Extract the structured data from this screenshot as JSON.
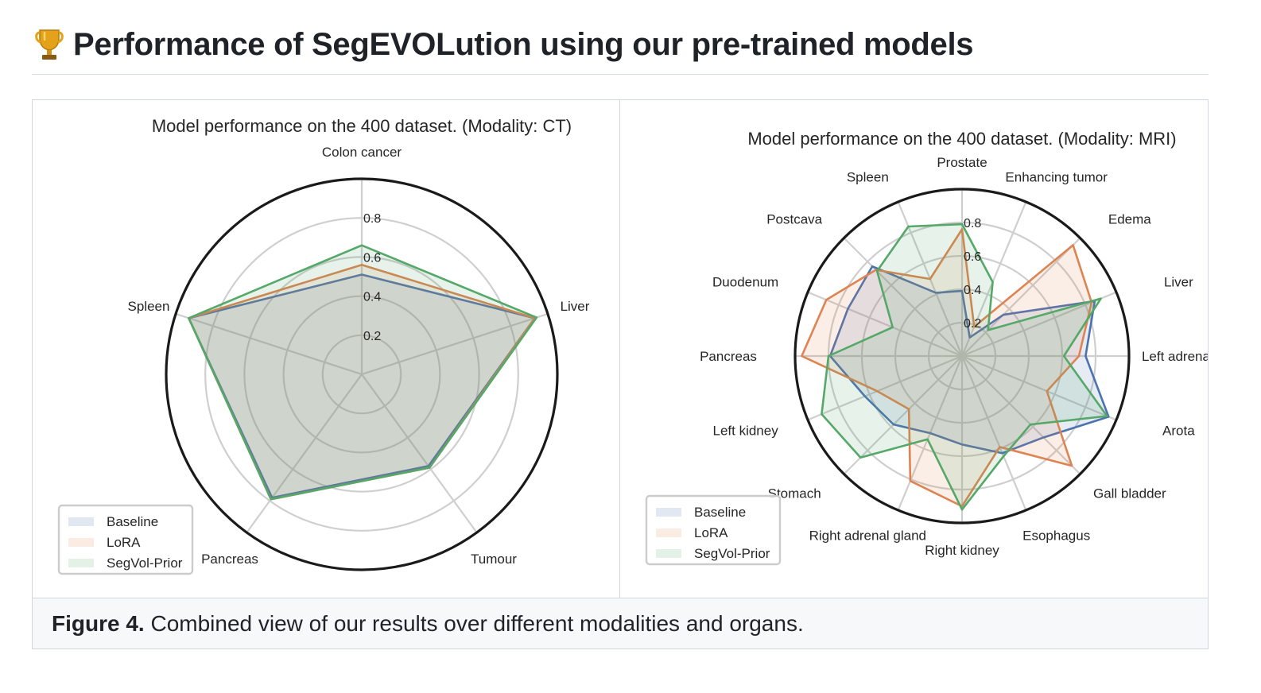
{
  "heading": {
    "icon": "trophy-icon",
    "title": "Performance of SegEVOLution using our pre-trained models"
  },
  "caption": {
    "label": "Figure 4.",
    "text": " Combined view of our results over different modalities and organs."
  },
  "colors": {
    "Baseline": "#4c72b0",
    "LoRA": "#dd8452",
    "SegVol-Prior": "#55a868"
  },
  "chart_data": [
    {
      "type": "radar",
      "title": "Model performance on the 400 dataset. (Modality: CT)",
      "categories": [
        "Colon cancer",
        "Liver",
        "Tumour",
        "Pancreas",
        "Spleen"
      ],
      "ticks": [
        "0.2",
        "0.4",
        "0.6",
        "0.8"
      ],
      "rlim": [
        0,
        1.0
      ],
      "grid": true,
      "legend": "bottom-left",
      "series": [
        {
          "name": "Baseline",
          "values": [
            0.51,
            0.93,
            0.58,
            0.78,
            0.93
          ]
        },
        {
          "name": "LoRA",
          "values": [
            0.56,
            0.93,
            0.59,
            0.79,
            0.93
          ]
        },
        {
          "name": "SegVol-Prior",
          "values": [
            0.66,
            0.94,
            0.59,
            0.79,
            0.93
          ]
        }
      ]
    },
    {
      "type": "radar",
      "title": "Model performance on the 400 dataset. (Modality: MRI)",
      "categories": [
        "Prostate",
        "Enhancing tumor",
        "Edema",
        "Liver",
        "Left adrenal gland",
        "Arota",
        "Gall bladder",
        "Esophagus",
        "Right kidney",
        "Right adrenal gland",
        "Stomach",
        "Left kidney",
        "Pancreas",
        "Duodenum",
        "Postcava",
        "Spleen"
      ],
      "ticks": [
        "0.2",
        "0.4",
        "0.6",
        "0.8"
      ],
      "rlim": [
        0,
        1.0
      ],
      "grid": true,
      "legend": "bottom-left",
      "series": [
        {
          "name": "Baseline",
          "values": [
            0.39,
            0.12,
            0.35,
            0.86,
            0.74,
            0.95,
            0.69,
            0.63,
            0.53,
            0.5,
            0.58,
            0.63,
            0.79,
            0.74,
            0.76,
            0.41
          ]
        },
        {
          "name": "LoRA",
          "values": [
            0.76,
            0.19,
            0.94,
            0.84,
            0.7,
            0.55,
            0.93,
            0.59,
            0.9,
            0.81,
            0.45,
            0.55,
            0.96,
            0.88,
            0.73,
            0.5
          ]
        },
        {
          "name": "SegVol-Prior",
          "values": [
            0.79,
            0.48,
            0.22,
            0.9,
            0.61,
            0.94,
            0.58,
            0.65,
            0.92,
            0.54,
            0.86,
            0.91,
            0.8,
            0.45,
            0.72,
            0.84
          ]
        }
      ]
    }
  ]
}
